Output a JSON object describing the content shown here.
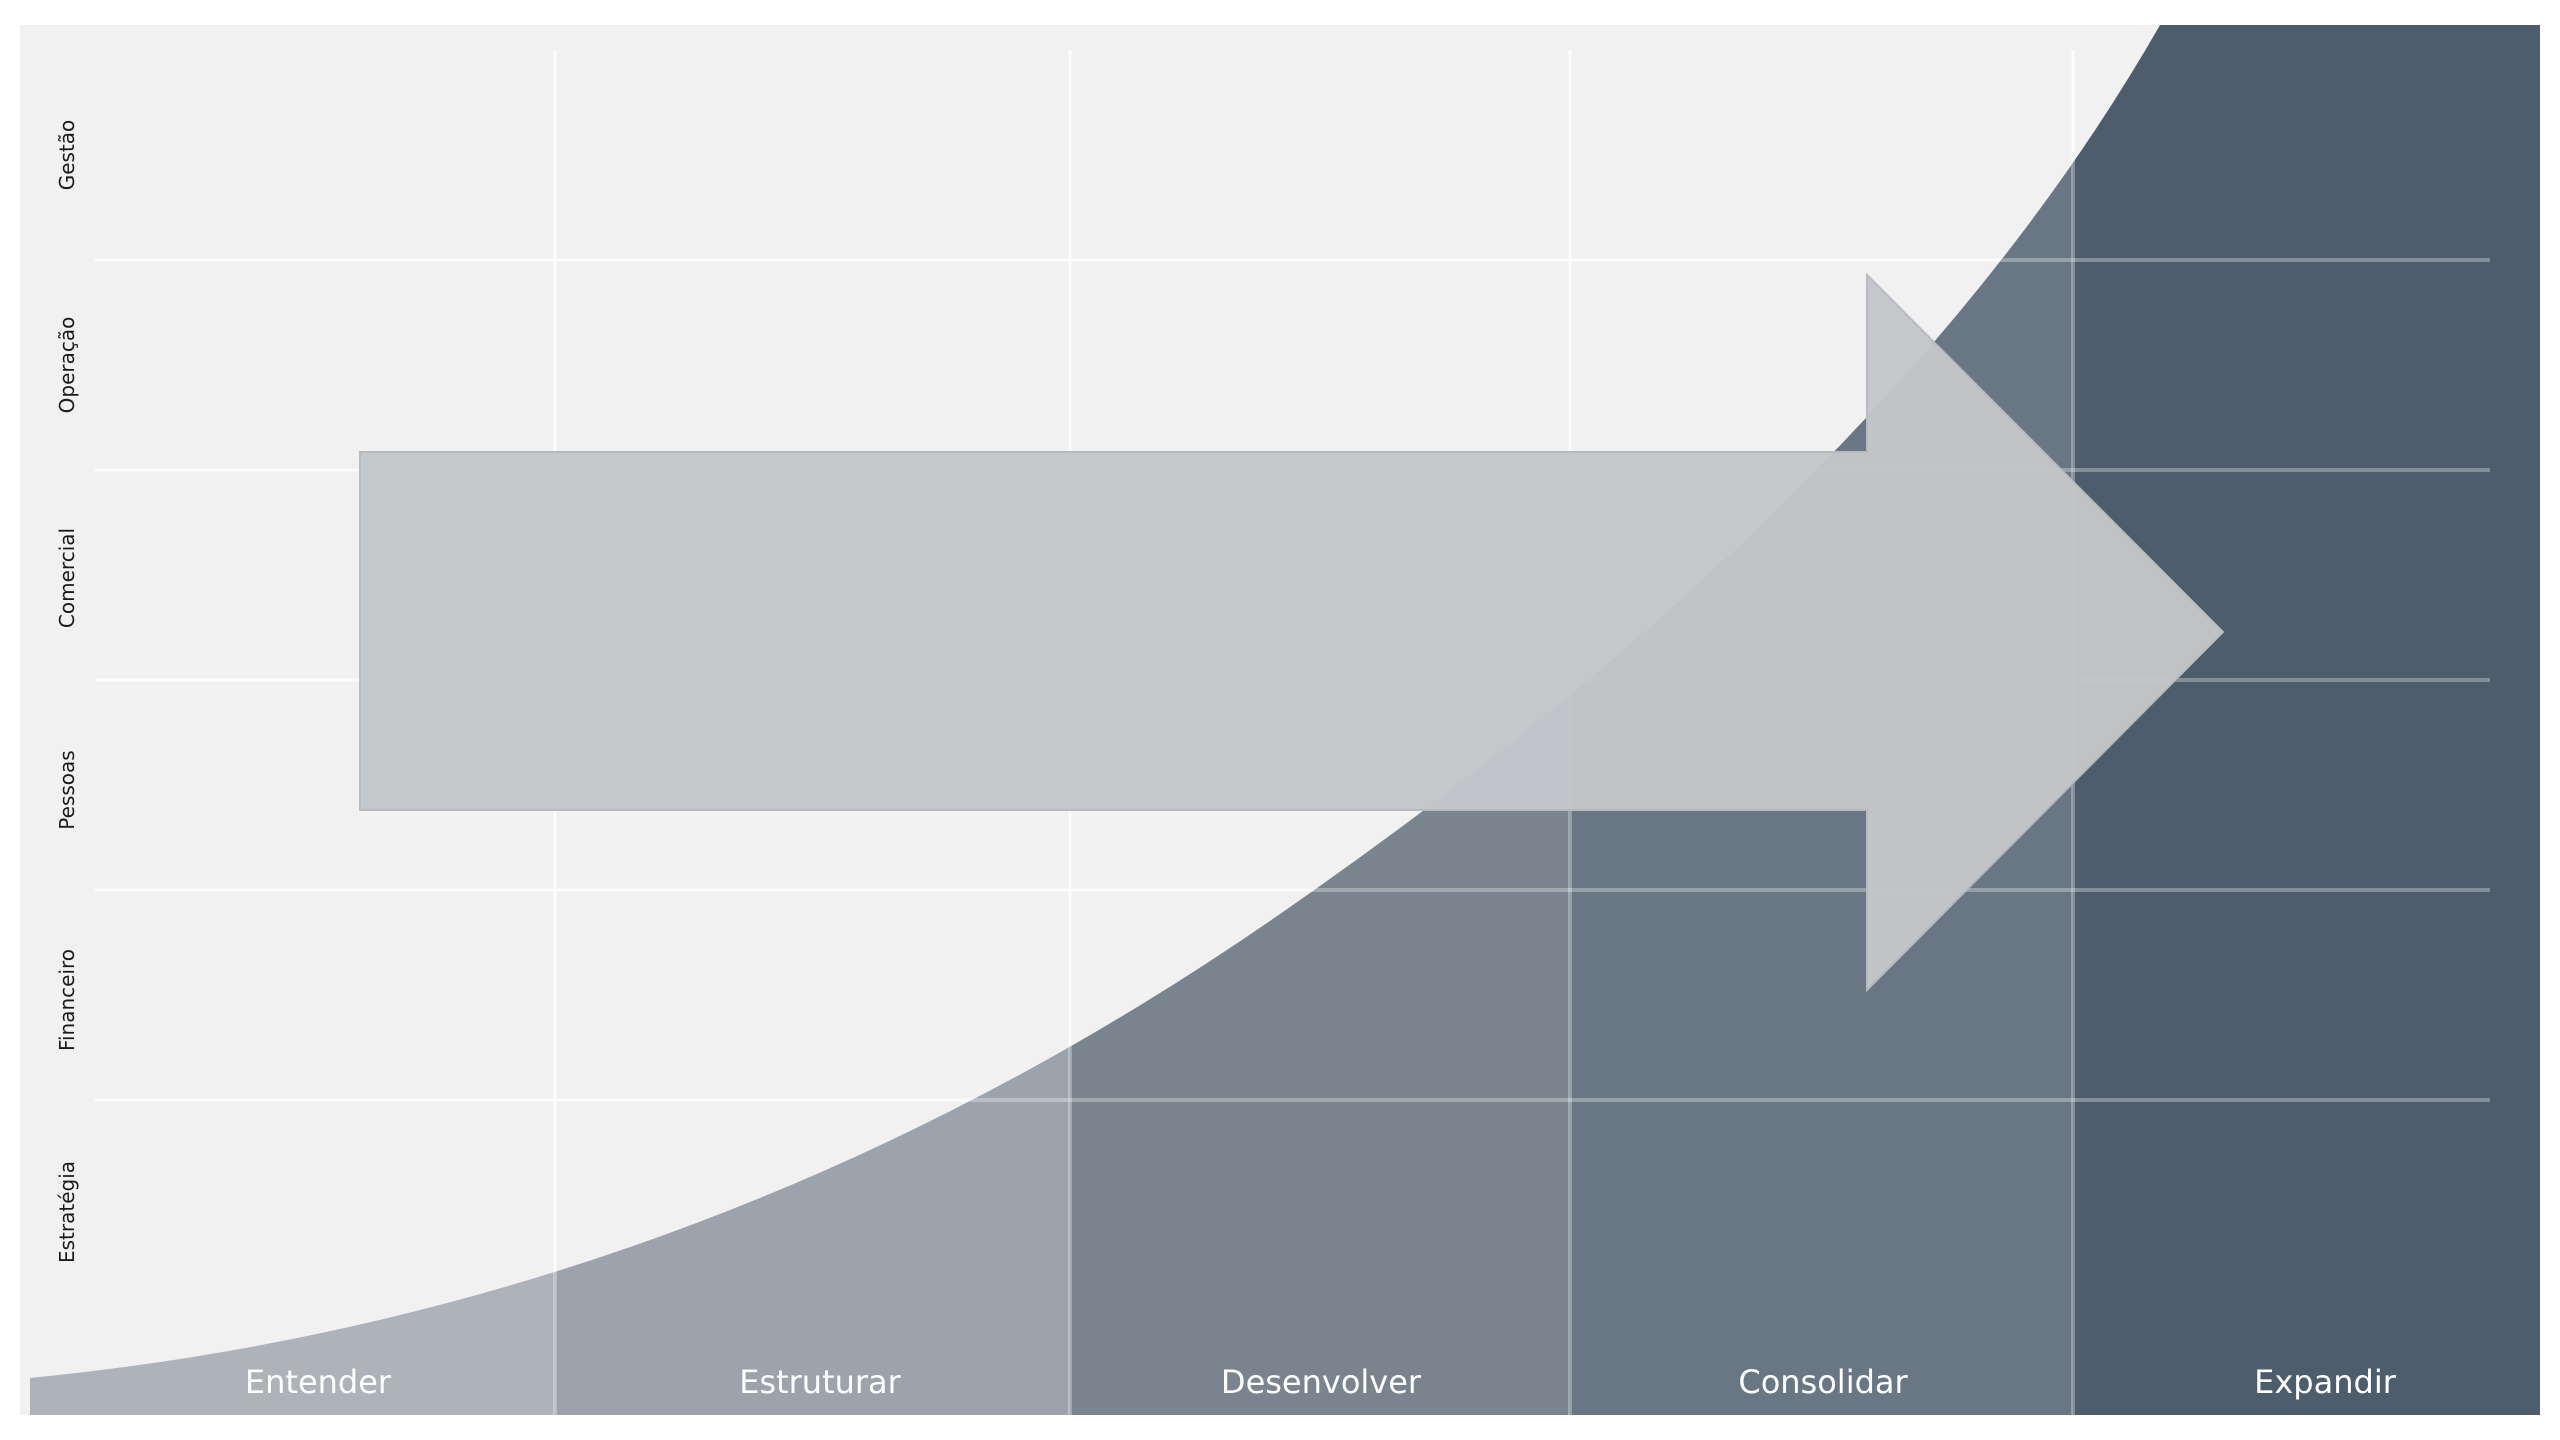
{
  "rows": [
    "Gestão",
    "Operação",
    "Comercial",
    "Pessoas",
    "Financeiro",
    "Estratégia"
  ],
  "stages": [
    "Entender",
    "Estruturar",
    "Desenvolver",
    "Consolidar",
    "Expandir"
  ],
  "colors": {
    "background": "#f1f1f1",
    "stages": [
      "#aeb3ba",
      "#9ca3ad",
      "#79848f",
      "#697785",
      "#4e5d6c"
    ],
    "grid": "#ffffff",
    "arrow": "#c3c6c9",
    "label_dark": "#1a1a1a",
    "label_light": "#ffffff"
  }
}
